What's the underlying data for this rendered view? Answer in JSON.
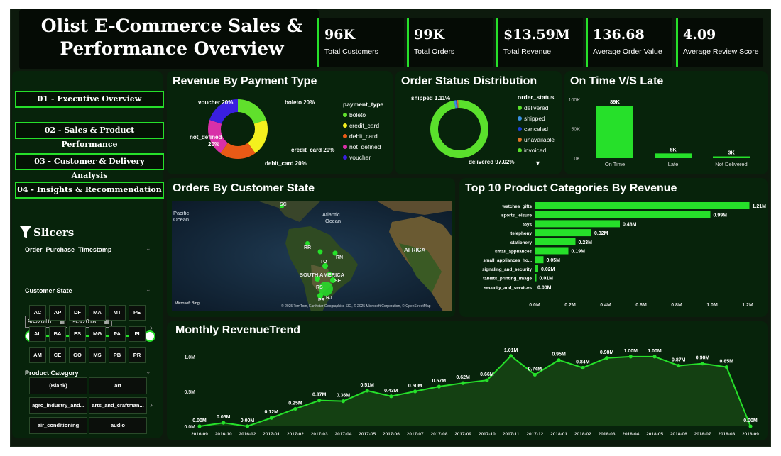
{
  "title": "Olist E-Commerce Sales & Performance Overview",
  "kpis": [
    {
      "value": "96K",
      "label": "Total Customers"
    },
    {
      "value": "99K",
      "label": "Total Orders"
    },
    {
      "value": "$13.59M",
      "label": "Total Revenue"
    },
    {
      "value": "136.68",
      "label": "Average Order Value"
    },
    {
      "value": "4.09",
      "label": "Average Review Score"
    }
  ],
  "nav": [
    "01 - Executive Overview",
    "02 - Sales & Product Performance",
    "03 - Customer & Delivery Analysis",
    "04 - Insights & Recommendation"
  ],
  "slicers": {
    "title": "Slicers",
    "date_label": "Order_Purchase_Timestamp",
    "date_from": "9/4/2016",
    "date_to": "9/3/2018",
    "state_label": "Customer State",
    "states": [
      "AC",
      "AP",
      "DF",
      "MA",
      "MT",
      "PE",
      "AL",
      "BA",
      "ES",
      "MG",
      "PA",
      "PI",
      "AM",
      "CE",
      "GO",
      "MS",
      "PB",
      "PR"
    ],
    "category_label": "Product Category",
    "categories": [
      "(Blank)",
      "art",
      "agro_industry_and...",
      "arts_and_craftman...",
      "air_conditioning",
      "audio"
    ]
  },
  "colors": {
    "accent": "#26e02a",
    "card": "#07230b",
    "background": "#0d1a0d"
  },
  "payment": {
    "title": "Revenue By Payment Type",
    "legend_title": "payment_type",
    "labels": {
      "voucher": "voucher 20%",
      "boleto": "boleto 20%",
      "credit": "credit_card 20%",
      "debit": "debit_card 20%",
      "notdef1": "not_defined",
      "notdef2": "20%"
    }
  },
  "status": {
    "title": "Order Status Distribution",
    "legend_title": "order_status",
    "shipped_label": "shipped 1.11%",
    "delivered_label": "delivered 97.02%"
  },
  "ontime": {
    "title": "On Time V/S Late"
  },
  "map": {
    "title": "Orders By Customer State",
    "labels": {
      "pacific": [
        "Pacific",
        "Ocean"
      ],
      "atlantic": [
        "Atlantic",
        "Ocean"
      ],
      "africa": "AFRICA",
      "south_america": "SOUTH AMERICA",
      "sc": "SC",
      "rr": "RR",
      "to": "TO",
      "rn": "RN",
      "se": "SE",
      "rs": "RS",
      "rj": "RJ",
      "pr": "PR"
    },
    "brand": "Microsoft Bing",
    "attribution": "© 2025 TomTom, Earthstar Geographics SIO, © 2025 Microsoft Corporation, © OpenStreetMap"
  },
  "categories_chart": {
    "title": "Top 10 Product Categories By Revenue"
  },
  "trend": {
    "title": "Monthly RevenueTrend"
  },
  "chart_data": [
    {
      "type": "pie",
      "title": "Revenue By Payment Type",
      "legend_title": "payment_type",
      "slices": [
        {
          "name": "boleto",
          "value": 20,
          "color": "#60e02c"
        },
        {
          "name": "credit_card",
          "value": 20,
          "color": "#f4f01e"
        },
        {
          "name": "debit_card",
          "value": 20,
          "color": "#e85a16"
        },
        {
          "name": "not_defined",
          "value": 20,
          "color": "#d830a8"
        },
        {
          "name": "voucher",
          "value": 20,
          "color": "#3a1fe0"
        }
      ]
    },
    {
      "type": "pie",
      "title": "Order Status Distribution",
      "legend_title": "order_status",
      "slices": [
        {
          "name": "delivered",
          "value": 97.02,
          "color": "#5ae02c"
        },
        {
          "name": "shipped",
          "value": 1.11,
          "color": "#3a8fe0"
        },
        {
          "name": "canceled",
          "value": 0.63,
          "color": "#1a3fd8"
        },
        {
          "name": "unavailable",
          "value": 0.61,
          "color": "#e0742a"
        },
        {
          "name": "invoiced",
          "value": 0.63,
          "color": "#5ae02c"
        }
      ]
    },
    {
      "type": "bar",
      "title": "On Time V/S Late",
      "categories": [
        "On Time",
        "Late",
        "Not Delivered"
      ],
      "values": [
        89,
        8,
        3
      ],
      "value_labels": [
        "89K",
        "8K",
        "3K"
      ],
      "ytick_labels": [
        "100K",
        "50K",
        "0K"
      ],
      "ylim": [
        0,
        100
      ]
    },
    {
      "type": "bar",
      "orientation": "horizontal",
      "title": "Top 10 Product Categories By Revenue",
      "categories": [
        "watches_gifts",
        "sports_leisure",
        "toys",
        "telephony",
        "stationery",
        "small_appliances",
        "small_appliances_ho...",
        "signaling_and_security",
        "tablets_printing_image",
        "security_and_services"
      ],
      "values": [
        1.21,
        0.99,
        0.48,
        0.32,
        0.23,
        0.19,
        0.05,
        0.02,
        0.01,
        0.0
      ],
      "value_labels": [
        "1.21M",
        "0.99M",
        "0.48M",
        "0.32M",
        "0.23M",
        "0.19M",
        "0.05M",
        "0.02M",
        "0.01M",
        "0.00M"
      ],
      "xtick_labels": [
        "0.0M",
        "0.2M",
        "0.4M",
        "0.6M",
        "0.8M",
        "1.0M",
        "1.2M"
      ],
      "xlim": [
        0,
        1.2
      ]
    },
    {
      "type": "area",
      "title": "Monthly RevenueTrend",
      "x": [
        "2016-09",
        "2016-10",
        "2016-12",
        "2017-01",
        "2017-02",
        "2017-03",
        "2017-04",
        "2017-05",
        "2017-06",
        "2017-07",
        "2017-08",
        "2017-09",
        "2017-10",
        "2017-11",
        "2017-12",
        "2018-01",
        "2018-02",
        "2018-03",
        "2018-04",
        "2018-05",
        "2018-06",
        "2018-07",
        "2018-08",
        "2018-09"
      ],
      "values": [
        0.0,
        0.05,
        0.0,
        0.12,
        0.25,
        0.37,
        0.36,
        0.51,
        0.43,
        0.5,
        0.57,
        0.62,
        0.66,
        1.01,
        0.74,
        0.95,
        0.84,
        0.98,
        1.0,
        1.0,
        0.87,
        0.9,
        0.85,
        0.0
      ],
      "value_labels": [
        "0.00M",
        "0.05M",
        "0.00M",
        "0.12M",
        "0.25M",
        "0.37M",
        "0.36M",
        "0.51M",
        "0.43M",
        "0.50M",
        "0.57M",
        "0.62M",
        "0.66M",
        "1.01M",
        "0.74M",
        "0.95M",
        "0.84M",
        "0.98M",
        "1.00M",
        "1.00M",
        "0.87M",
        "0.90M",
        "0.85M",
        "0.00M"
      ],
      "ytick_labels": [
        "1.0M",
        "0.5M",
        "0.0M"
      ],
      "ylim": [
        0,
        1.1
      ]
    }
  ]
}
